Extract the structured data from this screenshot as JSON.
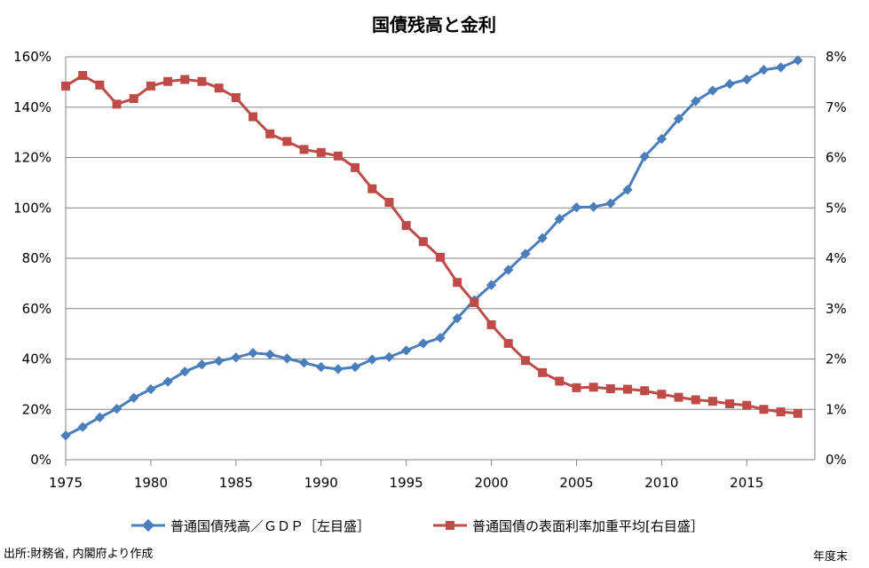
{
  "chart_data": {
    "type": "line",
    "title": "国債残高と金利",
    "xlabel": "",
    "x_ticks": [
      1975,
      1980,
      1985,
      1990,
      1995,
      2000,
      2005,
      2010,
      2015
    ],
    "x_range": [
      1975,
      2019
    ],
    "y_left_ticks": [
      "0%",
      "20%",
      "40%",
      "60%",
      "80%",
      "100%",
      "120%",
      "140%",
      "160%"
    ],
    "y_left_range": [
      0,
      160
    ],
    "y_right_ticks": [
      "0%",
      "1%",
      "2%",
      "3%",
      "4%",
      "5%",
      "6%",
      "7%",
      "8%"
    ],
    "y_right_range": [
      0,
      8
    ],
    "grid": "horizontal",
    "legend_placement": "bottom",
    "source_note": "出所:財務省, 内閣府より作成",
    "x_unit_note": "年度末",
    "series": [
      {
        "name": "普通国債残高／ＧＤＰ［左目盛］",
        "axis": "left",
        "color": "#4A7EBB",
        "marker": "diamond",
        "x": [
          1975,
          1976,
          1977,
          1978,
          1979,
          1980,
          1981,
          1982,
          1983,
          1984,
          1985,
          1986,
          1987,
          1988,
          1989,
          1990,
          1991,
          1992,
          1993,
          1994,
          1995,
          1996,
          1997,
          1998,
          1999,
          2000,
          2001,
          2002,
          2003,
          2004,
          2005,
          2006,
          2007,
          2008,
          2009,
          2010,
          2011,
          2012,
          2013,
          2014,
          2015,
          2016,
          2017,
          2018
        ],
        "values": [
          9.6,
          13.0,
          16.8,
          20.2,
          24.6,
          28.0,
          31.0,
          35.0,
          37.8,
          39.2,
          40.6,
          42.4,
          41.8,
          40.2,
          38.5,
          36.8,
          36.0,
          36.8,
          39.8,
          40.8,
          43.4,
          46.2,
          48.4,
          56.2,
          63.4,
          69.4,
          75.4,
          81.8,
          88.0,
          95.6,
          100.2,
          100.4,
          101.8,
          107.2,
          120.4,
          127.4,
          135.4,
          142.4,
          146.6,
          149.2,
          151.0,
          154.8,
          155.8,
          158.6
        ]
      },
      {
        "name": "普通国債の表面利率加重平均[右目盛］",
        "axis": "right",
        "color": "#BE4B48",
        "marker": "square",
        "x": [
          1975,
          1976,
          1977,
          1978,
          1979,
          1980,
          1981,
          1982,
          1983,
          1984,
          1985,
          1986,
          1987,
          1988,
          1989,
          1990,
          1991,
          1992,
          1993,
          1994,
          1995,
          1996,
          1997,
          1998,
          1999,
          2000,
          2001,
          2002,
          2003,
          2004,
          2005,
          2006,
          2007,
          2008,
          2009,
          2010,
          2011,
          2012,
          2013,
          2014,
          2015,
          2016,
          2017,
          2018
        ],
        "values": [
          7.42,
          7.63,
          7.44,
          7.06,
          7.17,
          7.42,
          7.51,
          7.55,
          7.51,
          7.38,
          7.19,
          6.81,
          6.47,
          6.32,
          6.16,
          6.1,
          6.03,
          5.8,
          5.38,
          5.11,
          4.65,
          4.33,
          4.02,
          3.52,
          3.12,
          2.68,
          2.31,
          1.97,
          1.73,
          1.56,
          1.43,
          1.44,
          1.41,
          1.4,
          1.37,
          1.3,
          1.24,
          1.19,
          1.16,
          1.11,
          1.08,
          1.0,
          0.95,
          0.92
        ]
      }
    ]
  }
}
